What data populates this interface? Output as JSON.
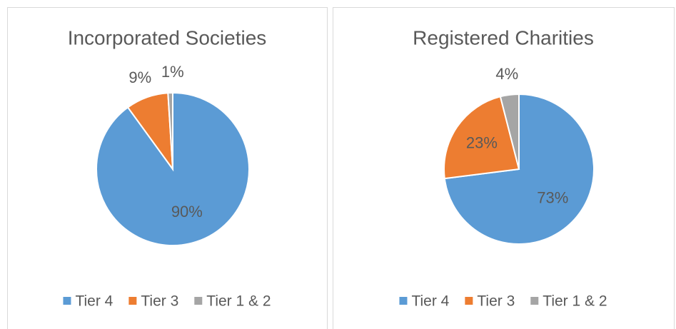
{
  "chart_data": [
    {
      "type": "pie",
      "title": "Incorporated Societies",
      "categories": [
        "Tier 4",
        "Tier 3",
        "Tier 1 & 2"
      ],
      "values": [
        90,
        9,
        1
      ],
      "value_labels": [
        "90%",
        "9%",
        "1%"
      ],
      "colors": [
        "#5b9bd5",
        "#ed7d31",
        "#a5a5a5"
      ],
      "legend": "bottom"
    },
    {
      "type": "pie",
      "title": "Registered Charities",
      "categories": [
        "Tier 4",
        "Tier 3",
        "Tier 1 & 2"
      ],
      "values": [
        73,
        23,
        4
      ],
      "value_labels": [
        "73%",
        "23%",
        "4%"
      ],
      "colors": [
        "#5b9bd5",
        "#ed7d31",
        "#a5a5a5"
      ],
      "legend": "bottom"
    }
  ]
}
